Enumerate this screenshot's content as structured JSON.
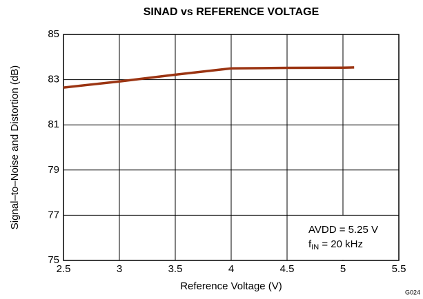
{
  "chart_data": {
    "type": "line",
    "title": "SINAD vs REFERENCE VOLTAGE",
    "xlabel": "Reference Voltage (V)",
    "ylabel": "Signal–to–Noise and Distortion (dB)",
    "x": [
      2.5,
      3,
      3.5,
      4,
      4.5,
      5,
      5.1
    ],
    "series": [
      {
        "name": "SINAD",
        "color": "#9b3412",
        "values": [
          82.65,
          82.92,
          83.22,
          83.5,
          83.52,
          83.53,
          83.54
        ]
      }
    ],
    "xlim": [
      2.5,
      5.5
    ],
    "xticks": [
      2.5,
      3,
      3.5,
      4,
      4.5,
      5,
      5.5
    ],
    "ylim": [
      75,
      85
    ],
    "yticks": [
      75,
      77,
      79,
      81,
      83,
      85
    ],
    "grid": true,
    "annotations": {
      "line1": "AVDD = 5.25 V",
      "line2_main": "f",
      "line2_sub": "IN",
      "line2_rest": " = 20 kHz"
    },
    "figure_id": "G024"
  }
}
